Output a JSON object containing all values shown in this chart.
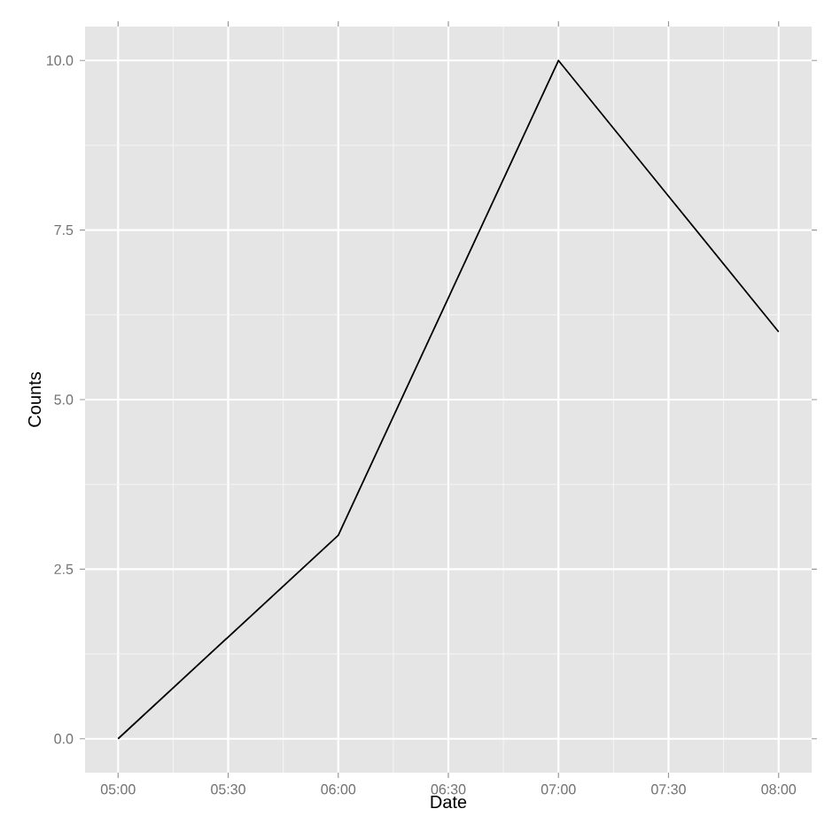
{
  "chart_data": {
    "type": "line",
    "xlabel": "Date",
    "ylabel": "Counts",
    "x": [
      5,
      6,
      7,
      8
    ],
    "series": [
      {
        "color": "#000000",
        "values": [
          0,
          3,
          10,
          6
        ]
      }
    ],
    "xlim": [
      4.85,
      8.15
    ],
    "ylim": [
      -0.5,
      10.5
    ],
    "xticks": [
      {
        "value": 5,
        "label": "05:00"
      },
      {
        "value": 5.5,
        "label": "05:30"
      },
      {
        "value": 6,
        "label": "06:00"
      },
      {
        "value": 6.5,
        "label": "06:30"
      },
      {
        "value": 7,
        "label": "07:00"
      },
      {
        "value": 7.5,
        "label": "07:30"
      },
      {
        "value": 8,
        "label": "08:00"
      }
    ],
    "yticks": [
      {
        "value": 0,
        "label": "0.0"
      },
      {
        "value": 2.5,
        "label": "2.5"
      },
      {
        "value": 5,
        "label": "5.0"
      },
      {
        "value": 7.5,
        "label": "7.5"
      },
      {
        "value": 10,
        "label": "10.0"
      }
    ],
    "grid": true,
    "marker": "none",
    "line_style": "solid"
  }
}
